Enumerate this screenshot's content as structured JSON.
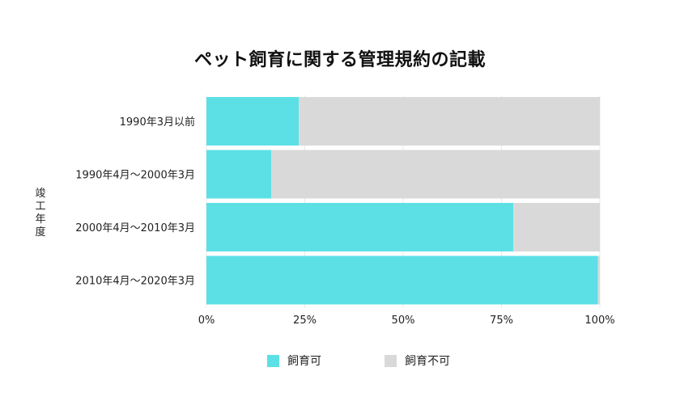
{
  "chart_data": {
    "type": "bar",
    "orientation": "horizontal",
    "stacked": "percent",
    "title": "ペット飼育に関する管理規約の記載",
    "ylabel": "竣工年度",
    "xlabel": "",
    "categories": [
      "1990年3月以前",
      "1990年4月〜2000年3月",
      "2000年4月〜2010年3月",
      "2010年4月〜2020年3月"
    ],
    "series": [
      {
        "name": "飼育可",
        "color": "#5ce0e6",
        "values": [
          23.5,
          16.5,
          78,
          99.5
        ]
      },
      {
        "name": "飼育不可",
        "color": "#d9d9d9",
        "values": [
          76.5,
          83.5,
          22,
          0.5
        ]
      }
    ],
    "xlim": [
      0,
      100
    ],
    "xticks": [
      "0%",
      "25%",
      "50%",
      "75%",
      "100%"
    ],
    "grid": true,
    "legend_position": "bottom"
  }
}
